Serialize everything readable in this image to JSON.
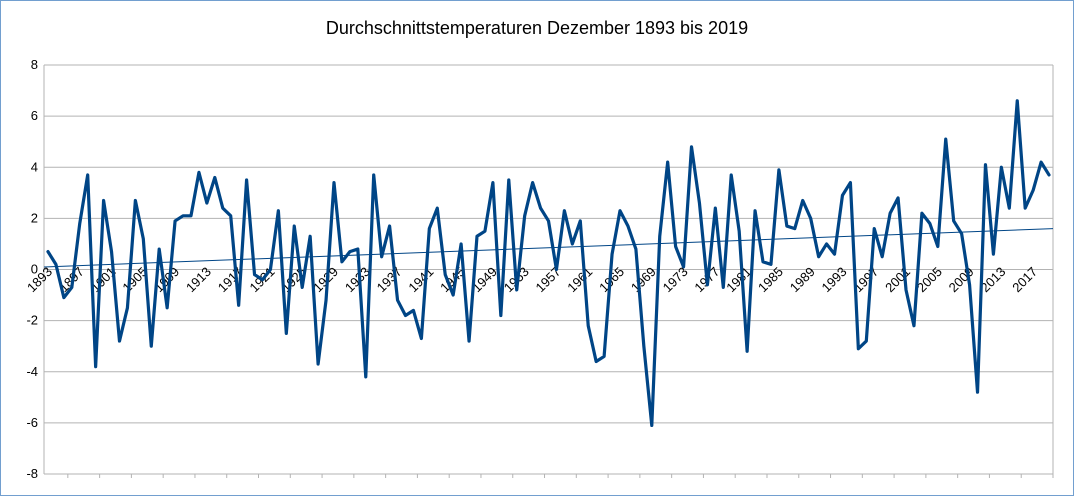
{
  "colors": {
    "series": "#004586",
    "trend": "#004586",
    "grid": "#b3b3b3",
    "border": "#729fcf"
  },
  "chart_data": {
    "type": "line",
    "title": "Durchschnittstemperaturen Dezember 1893 bis 2019",
    "xlabel": "",
    "ylabel": "",
    "ylim": [
      -8,
      8
    ],
    "ytick_labels": [
      "-8",
      "-6",
      "-4",
      "-2",
      "0",
      "2",
      "4",
      "6",
      "8"
    ],
    "xtick_labels": [
      "1893",
      "1897",
      "1901",
      "1905",
      "1909",
      "1913",
      "1917",
      "1921",
      "1925",
      "1929",
      "1933",
      "1937",
      "1941",
      "1945",
      "1949",
      "1953",
      "1957",
      "1961",
      "1965",
      "1969",
      "1973",
      "1977",
      "1981",
      "1985",
      "1989",
      "1993",
      "1997",
      "2001",
      "2005",
      "2009",
      "2013",
      "2017"
    ],
    "grid": true,
    "legend": "none",
    "x": [
      1893,
      1894,
      1895,
      1896,
      1897,
      1898,
      1899,
      1900,
      1901,
      1902,
      1903,
      1904,
      1905,
      1906,
      1907,
      1908,
      1909,
      1910,
      1911,
      1912,
      1913,
      1914,
      1915,
      1916,
      1917,
      1918,
      1919,
      1920,
      1921,
      1922,
      1923,
      1924,
      1925,
      1926,
      1927,
      1928,
      1929,
      1930,
      1931,
      1932,
      1933,
      1934,
      1935,
      1936,
      1937,
      1938,
      1939,
      1940,
      1941,
      1942,
      1943,
      1944,
      1945,
      1946,
      1947,
      1948,
      1949,
      1950,
      1951,
      1952,
      1953,
      1954,
      1955,
      1956,
      1957,
      1958,
      1959,
      1960,
      1961,
      1962,
      1963,
      1964,
      1965,
      1966,
      1967,
      1968,
      1969,
      1970,
      1971,
      1972,
      1973,
      1974,
      1975,
      1976,
      1977,
      1978,
      1979,
      1980,
      1981,
      1982,
      1983,
      1984,
      1985,
      1986,
      1987,
      1988,
      1989,
      1990,
      1991,
      1992,
      1993,
      1994,
      1995,
      1996,
      1997,
      1998,
      1999,
      2000,
      2001,
      2002,
      2003,
      2004,
      2005,
      2006,
      2007,
      2008,
      2009,
      2010,
      2011,
      2012,
      2013,
      2014,
      2015,
      2016,
      2017,
      2018,
      2019
    ],
    "series": [
      {
        "values": [
          0.7,
          0.2,
          -1.1,
          -0.7,
          1.8,
          3.7,
          -3.8,
          2.7,
          0.7,
          -2.8,
          -1.5,
          2.7,
          1.2,
          -3.0,
          0.8,
          -1.5,
          1.9,
          2.1,
          2.1,
          3.8,
          2.6,
          3.6,
          2.4,
          2.1,
          -1.4,
          3.5,
          -0.2,
          -0.4,
          0.0,
          2.3,
          -2.5,
          1.7,
          -0.7,
          1.3,
          -3.7,
          -1.2,
          3.4,
          0.3,
          0.7,
          0.8,
          -4.2,
          3.7,
          0.5,
          1.7,
          -1.2,
          -1.8,
          -1.6,
          -2.7,
          1.6,
          2.4,
          -0.2,
          -1.0,
          1.0,
          -2.8,
          1.3,
          1.5,
          3.4,
          -1.8,
          3.5,
          -0.8,
          2.1,
          3.4,
          2.4,
          1.9,
          0.0,
          2.3,
          1.0,
          1.9,
          -2.2,
          -3.6,
          -3.4,
          0.6,
          2.3,
          1.7,
          0.8,
          -3.0,
          -6.1,
          1.3,
          4.2,
          0.9,
          0.1,
          4.8,
          2.6,
          -0.6,
          2.4,
          -0.7,
          3.7,
          1.5,
          -3.2,
          2.3,
          0.3,
          0.2,
          3.9,
          1.7,
          1.6,
          2.7,
          2.0,
          0.5,
          1.0,
          0.6,
          2.9,
          3.4,
          -3.1,
          -2.8,
          1.6,
          0.5,
          2.2,
          2.8,
          -0.8,
          -2.2,
          2.2,
          1.8,
          0.9,
          5.1,
          1.9,
          1.4,
          -0.6,
          -4.8,
          4.1,
          0.6,
          4.0,
          2.4,
          6.6,
          2.4,
          3.1,
          4.2,
          3.7
        ]
      }
    ],
    "trendline": {
      "start": 0.1,
      "end": 1.6
    }
  }
}
